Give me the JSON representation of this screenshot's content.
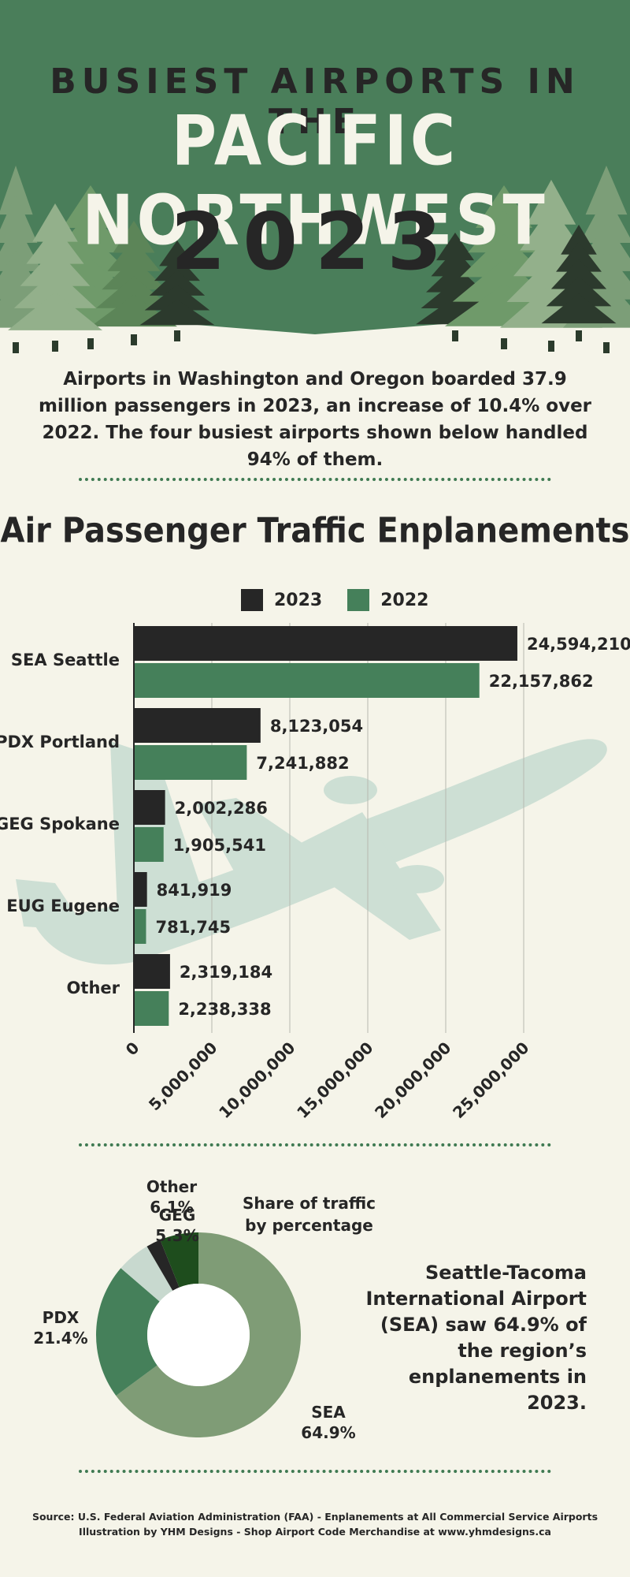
{
  "header": {
    "kicker": "BUSIEST AIRPORTS IN THE",
    "title": "PACIFIC NORTHWEST",
    "year": "2023"
  },
  "intro": "Airports in Washington and Oregon boarded 37.9 million passengers in 2023, an increase of 10.4% over 2022. The four busiest airports shown below handled 94% of them.",
  "colors": {
    "background": "#f5f4e9",
    "header_green": "#4a7e5a",
    "dark": "#262626",
    "series_2023": "#262626",
    "series_2022": "#45805a",
    "sea": "#7f9c76",
    "pdx": "#45805a",
    "geg": "#c8d9cf",
    "eug": "#262626",
    "other": "#1e4d1d",
    "plane": "#c9ddd2"
  },
  "icons": [
    "pine-tree-icon",
    "airplane-icon"
  ],
  "chart_data": [
    {
      "type": "bar",
      "orientation": "horizontal",
      "title": "Air Passenger Traffic Enplanements",
      "categories": [
        "SEA Seattle",
        "PDX Portland",
        "GEG Spokane",
        "EUG Eugene",
        "Other"
      ],
      "series": [
        {
          "name": "2023",
          "values": [
            24594210,
            8123054,
            2002286,
            841919,
            2319184
          ]
        },
        {
          "name": "2022",
          "values": [
            22157862,
            7241882,
            1905541,
            781745,
            2238338
          ]
        }
      ],
      "data_labels_2023": [
        "24,594,210",
        "8,123,054",
        "2,002,286",
        "841,919",
        "2,319,184"
      ],
      "data_labels_2022": [
        "22,157,862",
        "7,241,882",
        "1,905,541",
        "781,745",
        "2,238,338"
      ],
      "xlim": [
        0,
        25000000
      ],
      "xticks": [
        0,
        5000000,
        10000000,
        15000000,
        20000000,
        25000000
      ],
      "xtick_labels": [
        "0",
        "5,000,000",
        "10,000,000",
        "15,000,000",
        "20,000,000",
        "25,000,000"
      ],
      "grid": "vertical",
      "legend": "top-center"
    },
    {
      "type": "pie",
      "style": "donut",
      "title": "Share of traffic by percentage",
      "slices": [
        {
          "label": "SEA",
          "value": 64.9,
          "display": "64.9%"
        },
        {
          "label": "PDX",
          "value": 21.4,
          "display": "21.4%"
        },
        {
          "label": "GEG",
          "value": 5.3,
          "display": "5.3%"
        },
        {
          "label": "EUG",
          "value": 2.3,
          "display": ""
        },
        {
          "label": "Other",
          "value": 6.1,
          "display": "6.1%"
        }
      ]
    }
  ],
  "donut_text": {
    "title": "Share of traffic by percentage",
    "sea_name": "SEA",
    "sea_pct": "64.9%",
    "pdx_name": "PDX",
    "pdx_pct": "21.4%",
    "geg_name": "GEG",
    "geg_pct": "5.3%",
    "other_name": "Other",
    "other_pct": "6.1%"
  },
  "callout": "Seattle-Tacoma International Airport (SEA) saw 64.9% of the region’s enplanements in 2023.",
  "source": {
    "line1": "Source: U.S. Federal Aviation Administration (FAA) - Enplanements at All Commercial Service Airports",
    "line2": "Illustration by YHM Designs - Shop Airport Code Merchandise at www.yhmdesigns.ca"
  }
}
